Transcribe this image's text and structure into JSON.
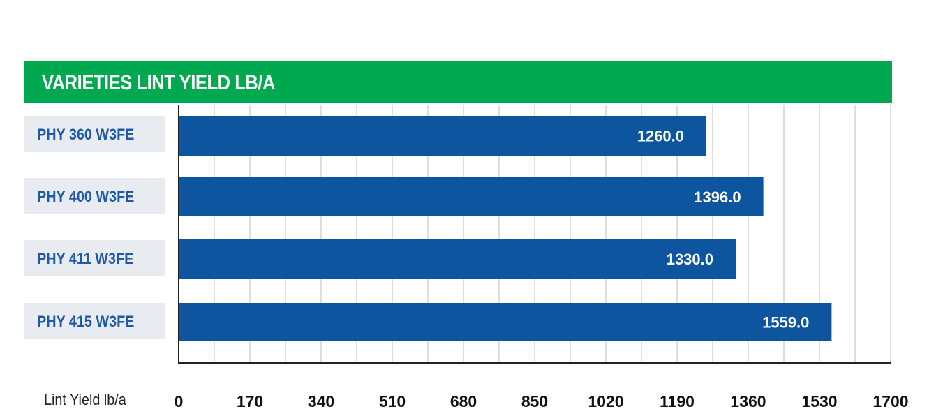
{
  "chart_data": {
    "type": "bar",
    "orientation": "horizontal",
    "title": "VARIETIES LINT YIELD LB/A",
    "xlabel": "Lint Yield lb/a",
    "categories": [
      "PHY 360 W3FE",
      "PHY 400 W3FE",
      "PHY 411 W3FE",
      "PHY 415 W3FE"
    ],
    "values": [
      1260.0,
      1396.0,
      1330.0,
      1559.0
    ],
    "value_labels": [
      "1260.0",
      "1396.0",
      "1330.0",
      "1559.0"
    ],
    "xlim": [
      0,
      1700
    ],
    "ticks": [
      "0",
      "170",
      "340",
      "510",
      "680",
      "850",
      "1020",
      "1190",
      "1360",
      "1530",
      "1700"
    ],
    "grid": true,
    "colors": {
      "bar": "#0e55a0",
      "banner": "#00a84f",
      "label_bg": "#e8ebf0",
      "label_text": "#1f5aa6",
      "grid": "#bfbfbf"
    }
  }
}
